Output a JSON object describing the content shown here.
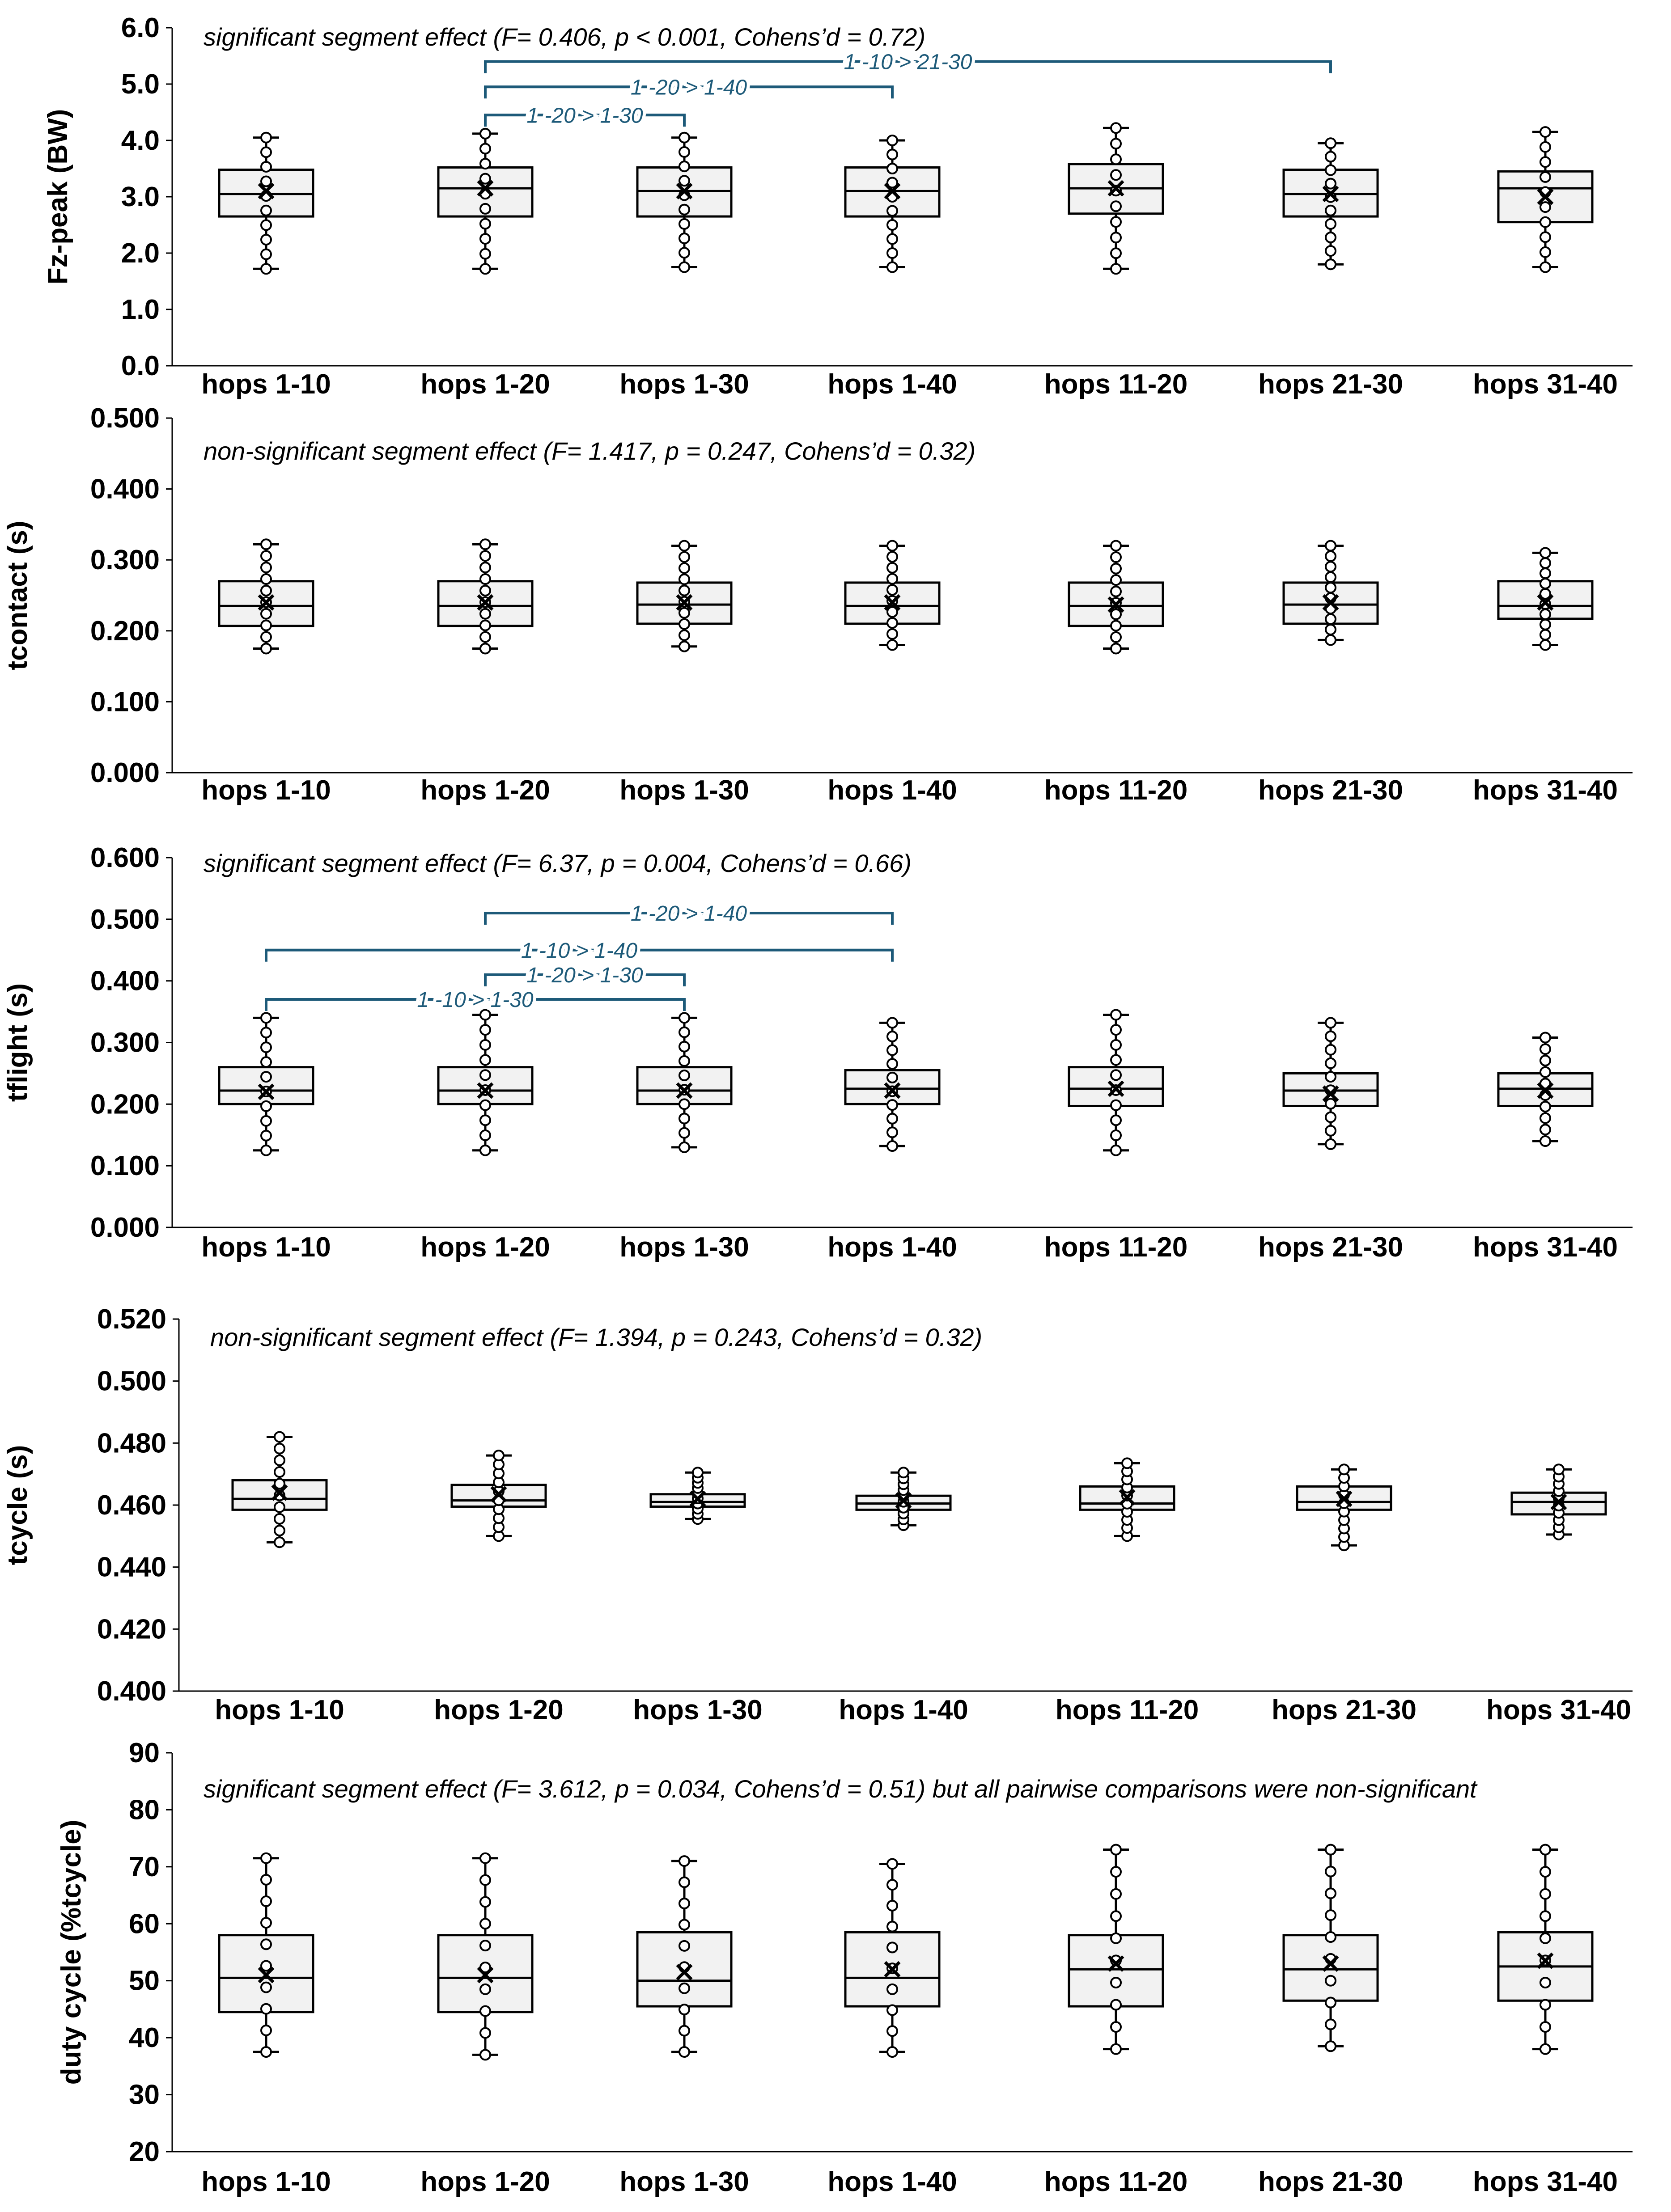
{
  "chart_data": [
    {
      "type": "box",
      "ylabel": "Fz-peak (BW)",
      "annotation": "significant segment effect (F= 0.406, p < 0.001, Cohens’d = 0.72)",
      "ylim": [
        0,
        6
      ],
      "yticks": [
        "0.0",
        "1.0",
        "2.0",
        "3.0",
        "4.0",
        "5.0",
        "6.0"
      ],
      "categories": [
        "hops 1-10",
        "hops 1-20",
        "hops 1-30",
        "hops 1-40",
        "hops 11-20",
        "hops 21-30",
        "hops 31-40"
      ],
      "boxes": [
        {
          "min": 1.72,
          "q1": 2.65,
          "median": 3.05,
          "q3": 3.48,
          "max": 4.05,
          "mean": 3.1
        },
        {
          "min": 1.72,
          "q1": 2.65,
          "median": 3.15,
          "q3": 3.52,
          "max": 4.12,
          "mean": 3.15
        },
        {
          "min": 1.75,
          "q1": 2.65,
          "median": 3.1,
          "q3": 3.52,
          "max": 4.05,
          "mean": 3.1
        },
        {
          "min": 1.75,
          "q1": 2.65,
          "median": 3.1,
          "q3": 3.52,
          "max": 4.0,
          "mean": 3.1
        },
        {
          "min": 1.72,
          "q1": 2.7,
          "median": 3.15,
          "q3": 3.58,
          "max": 4.22,
          "mean": 3.15
        },
        {
          "min": 1.8,
          "q1": 2.65,
          "median": 3.05,
          "q3": 3.48,
          "max": 3.95,
          "mean": 3.05
        },
        {
          "min": 1.75,
          "q1": 2.55,
          "median": 3.15,
          "q3": 3.45,
          "max": 4.15,
          "mean": 3.0
        }
      ],
      "comparisons": [
        {
          "label": "1 -10 > 21-30",
          "from": 1,
          "to": 5,
          "y": 5.4
        },
        {
          "label": "1 -20 > 1-40",
          "from": 1,
          "to": 3,
          "y": 4.95
        },
        {
          "label": "1 -20 > 1-30",
          "from": 1,
          "to": 2,
          "y": 4.45
        }
      ]
    },
    {
      "type": "box",
      "ylabel": "tcontact (s)",
      "annotation": "non-significant segment effect (F= 1.417, p = 0.247, Cohens’d = 0.32)",
      "ylim": [
        0,
        0.5
      ],
      "yticks": [
        "0.000",
        "0.100",
        "0.200",
        "0.300",
        "0.400",
        "0.500"
      ],
      "categories": [
        "hops 1-10",
        "hops 1-20",
        "hops 1-30",
        "hops 1-40",
        "hops 11-20",
        "hops 21-30",
        "hops 31-40"
      ],
      "boxes": [
        {
          "min": 0.175,
          "q1": 0.207,
          "median": 0.235,
          "q3": 0.27,
          "max": 0.322,
          "mean": 0.24
        },
        {
          "min": 0.175,
          "q1": 0.207,
          "median": 0.235,
          "q3": 0.27,
          "max": 0.322,
          "mean": 0.24
        },
        {
          "min": 0.178,
          "q1": 0.21,
          "median": 0.237,
          "q3": 0.268,
          "max": 0.32,
          "mean": 0.24
        },
        {
          "min": 0.18,
          "q1": 0.21,
          "median": 0.235,
          "q3": 0.268,
          "max": 0.32,
          "mean": 0.24
        },
        {
          "min": 0.175,
          "q1": 0.207,
          "median": 0.235,
          "q3": 0.268,
          "max": 0.32,
          "mean": 0.237
        },
        {
          "min": 0.187,
          "q1": 0.21,
          "median": 0.237,
          "q3": 0.268,
          "max": 0.32,
          "mean": 0.24
        },
        {
          "min": 0.18,
          "q1": 0.217,
          "median": 0.235,
          "q3": 0.27,
          "max": 0.31,
          "mean": 0.24
        }
      ],
      "comparisons": []
    },
    {
      "type": "box",
      "ylabel": "tflight (s)",
      "annotation": "significant segment effect (F= 6.37, p = 0.004, Cohens’d = 0.66)",
      "ylim": [
        0,
        0.6
      ],
      "yticks": [
        "0.000",
        "0.100",
        "0.200",
        "0.300",
        "0.400",
        "0.500",
        "0.600"
      ],
      "categories": [
        "hops 1-10",
        "hops 1-20",
        "hops 1-30",
        "hops 1-40",
        "hops 11-20",
        "hops 21-30",
        "hops 31-40"
      ],
      "boxes": [
        {
          "min": 0.125,
          "q1": 0.2,
          "median": 0.222,
          "q3": 0.26,
          "max": 0.34,
          "mean": 0.22
        },
        {
          "min": 0.125,
          "q1": 0.2,
          "median": 0.222,
          "q3": 0.26,
          "max": 0.345,
          "mean": 0.222
        },
        {
          "min": 0.13,
          "q1": 0.2,
          "median": 0.222,
          "q3": 0.26,
          "max": 0.34,
          "mean": 0.222
        },
        {
          "min": 0.132,
          "q1": 0.2,
          "median": 0.225,
          "q3": 0.255,
          "max": 0.332,
          "mean": 0.222
        },
        {
          "min": 0.125,
          "q1": 0.197,
          "median": 0.225,
          "q3": 0.26,
          "max": 0.345,
          "mean": 0.225
        },
        {
          "min": 0.135,
          "q1": 0.197,
          "median": 0.222,
          "q3": 0.25,
          "max": 0.332,
          "mean": 0.217
        },
        {
          "min": 0.14,
          "q1": 0.197,
          "median": 0.225,
          "q3": 0.25,
          "max": 0.308,
          "mean": 0.222
        }
      ],
      "comparisons": [
        {
          "label": "1 -20 > 1-40",
          "from": 1,
          "to": 3,
          "y": 0.51
        },
        {
          "label": "1 -10 > 1-40",
          "from": 0,
          "to": 3,
          "y": 0.45
        },
        {
          "label": "1 -20 > 1-30",
          "from": 1,
          "to": 2,
          "y": 0.41
        },
        {
          "label": "1 -10 > 1-30",
          "from": 0,
          "to": 2,
          "y": 0.37
        }
      ]
    },
    {
      "type": "box",
      "ylabel": "tcycle (s)",
      "annotation": "non-significant segment effect (F= 1.394, p = 0.243, Cohens’d = 0.32)",
      "ylim": [
        0.4,
        0.52
      ],
      "yticks": [
        "0.400",
        "0.420",
        "0.440",
        "0.460",
        "0.480",
        "0.500",
        "0.520"
      ],
      "categories": [
        "hops 1-10",
        "hops 1-20",
        "hops 1-30",
        "hops 1-40",
        "hops 11-20",
        "hops 21-30",
        "hops 31-40"
      ],
      "boxes": [
        {
          "min": 0.448,
          "q1": 0.4585,
          "median": 0.462,
          "q3": 0.468,
          "max": 0.482,
          "mean": 0.464
        },
        {
          "min": 0.45,
          "q1": 0.4595,
          "median": 0.4615,
          "q3": 0.4665,
          "max": 0.476,
          "mean": 0.4635
        },
        {
          "min": 0.4555,
          "q1": 0.4595,
          "median": 0.461,
          "q3": 0.4635,
          "max": 0.4705,
          "mean": 0.462
        },
        {
          "min": 0.4535,
          "q1": 0.4585,
          "median": 0.4605,
          "q3": 0.463,
          "max": 0.4705,
          "mean": 0.4615
        },
        {
          "min": 0.45,
          "q1": 0.4585,
          "median": 0.4605,
          "q3": 0.466,
          "max": 0.4735,
          "mean": 0.4625
        },
        {
          "min": 0.447,
          "q1": 0.4585,
          "median": 0.461,
          "q3": 0.466,
          "max": 0.4715,
          "mean": 0.462
        },
        {
          "min": 0.4505,
          "q1": 0.457,
          "median": 0.461,
          "q3": 0.464,
          "max": 0.4715,
          "mean": 0.461
        }
      ],
      "comparisons": []
    },
    {
      "type": "box",
      "ylabel": "duty cycle (%tcycle)",
      "annotation": "significant segment effect (F= 3.612, p = 0.034, Cohens’d = 0.51) but all pairwise comparisons were non-significant",
      "ylim": [
        20,
        90
      ],
      "yticks": [
        "20",
        "30",
        "40",
        "50",
        "60",
        "70",
        "80",
        "90"
      ],
      "categories": [
        "hops 1-10",
        "hops 1-20",
        "hops 1-30",
        "hops 1-40",
        "hops 11-20",
        "hops 21-30",
        "hops 31-40"
      ],
      "boxes": [
        {
          "min": 37.5,
          "q1": 44.5,
          "median": 50.5,
          "q3": 58,
          "max": 71.5,
          "mean": 51
        },
        {
          "min": 37,
          "q1": 44.5,
          "median": 50.5,
          "q3": 58,
          "max": 71.5,
          "mean": 51
        },
        {
          "min": 37.5,
          "q1": 45.5,
          "median": 50,
          "q3": 58.5,
          "max": 71,
          "mean": 51.5
        },
        {
          "min": 37.5,
          "q1": 45.5,
          "median": 50.5,
          "q3": 58.5,
          "max": 70.5,
          "mean": 52
        },
        {
          "min": 38,
          "q1": 45.5,
          "median": 52,
          "q3": 58,
          "max": 73,
          "mean": 53
        },
        {
          "min": 38.5,
          "q1": 46.5,
          "median": 52,
          "q3": 58,
          "max": 73,
          "mean": 53
        },
        {
          "min": 38,
          "q1": 46.5,
          "median": 52.5,
          "q3": 58.5,
          "max": 73,
          "mean": 53.5
        }
      ],
      "comparisons": []
    }
  ],
  "colors": {
    "box_fill": "#f2f2f2",
    "stroke": "#000000",
    "comparison": "#1d5a79"
  }
}
